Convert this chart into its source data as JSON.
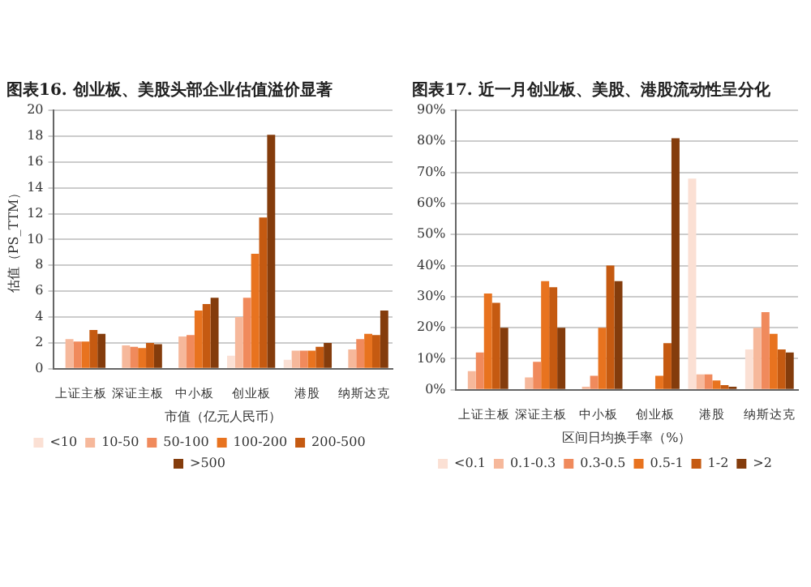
{
  "chart_data": [
    {
      "type": "bar",
      "title": "图表16. 创业板、美股头部企业估值溢价显著",
      "ylabel": "估值（PS_TTM）",
      "xlabel": "市值（亿元人民币）",
      "categories": [
        "上证主板",
        "深证主板",
        "中小板",
        "创业板",
        "港股",
        "纳斯达克"
      ],
      "series": [
        {
          "name": "<10",
          "color": "#fbe0d4",
          "values": [
            null,
            null,
            null,
            1.0,
            0.7,
            null
          ]
        },
        {
          "name": "10-50",
          "color": "#f6b89b",
          "values": [
            2.3,
            1.8,
            2.5,
            4.0,
            1.4,
            1.5
          ]
        },
        {
          "name": "50-100",
          "color": "#f08a5c",
          "values": [
            2.1,
            1.7,
            2.6,
            5.5,
            1.4,
            2.3
          ]
        },
        {
          "name": "100-200",
          "color": "#e8731f",
          "values": [
            2.1,
            1.6,
            4.5,
            8.9,
            1.4,
            2.7
          ]
        },
        {
          "name": "200-500",
          "color": "#c55a11",
          "values": [
            3.0,
            2.0,
            5.0,
            11.7,
            1.7,
            2.6
          ]
        },
        {
          "name": ">500",
          "color": "#843c0c",
          "values": [
            2.7,
            1.9,
            5.5,
            18.1,
            2.0,
            4.5
          ]
        }
      ],
      "ylim": [
        0,
        20
      ],
      "yticks": [
        0,
        2,
        4,
        6,
        8,
        10,
        12,
        14,
        16,
        18,
        20
      ],
      "grid": "y",
      "legend": "bottom"
    },
    {
      "type": "bar",
      "title": "图表17. 近一月创业板、美股、港股流动性呈分化",
      "xlabel": "区间日均换手率（%）",
      "categories": [
        "上证主板",
        "深证主板",
        "中小板",
        "创业板",
        "港股",
        "纳斯达克"
      ],
      "series": [
        {
          "name": "<0.1",
          "color": "#fbe0d4",
          "values": [
            null,
            null,
            null,
            null,
            68,
            13
          ]
        },
        {
          "name": "0.1-0.3",
          "color": "#f6b89b",
          "values": [
            6,
            4,
            1,
            null,
            5,
            20
          ]
        },
        {
          "name": "0.3-0.5",
          "color": "#f08a5c",
          "values": [
            12,
            9,
            4.5,
            null,
            5,
            25
          ]
        },
        {
          "name": "0.5-1",
          "color": "#e8731f",
          "values": [
            31,
            35,
            20,
            4.5,
            3,
            18
          ]
        },
        {
          "name": "1-2",
          "color": "#c55a11",
          "values": [
            28,
            33,
            40,
            15,
            1.5,
            13
          ]
        },
        {
          "name": ">2",
          "color": "#843c0c",
          "values": [
            20,
            20,
            35,
            81,
            1,
            12
          ]
        }
      ],
      "ylim": [
        0,
        90
      ],
      "yticks": [
        {
          "value": 0,
          "label": "0%"
        },
        {
          "value": 10,
          "label": "10%"
        },
        {
          "value": 20,
          "label": "20%"
        },
        {
          "value": 30,
          "label": "30%"
        },
        {
          "value": 40,
          "label": "40%"
        },
        {
          "value": 50,
          "label": "50%"
        },
        {
          "value": 60,
          "label": "60%"
        },
        {
          "value": 70,
          "label": "70%"
        },
        {
          "value": 80,
          "label": "80%"
        },
        {
          "value": 90,
          "label": "90%"
        }
      ],
      "grid": "y",
      "legend": "bottom"
    }
  ]
}
